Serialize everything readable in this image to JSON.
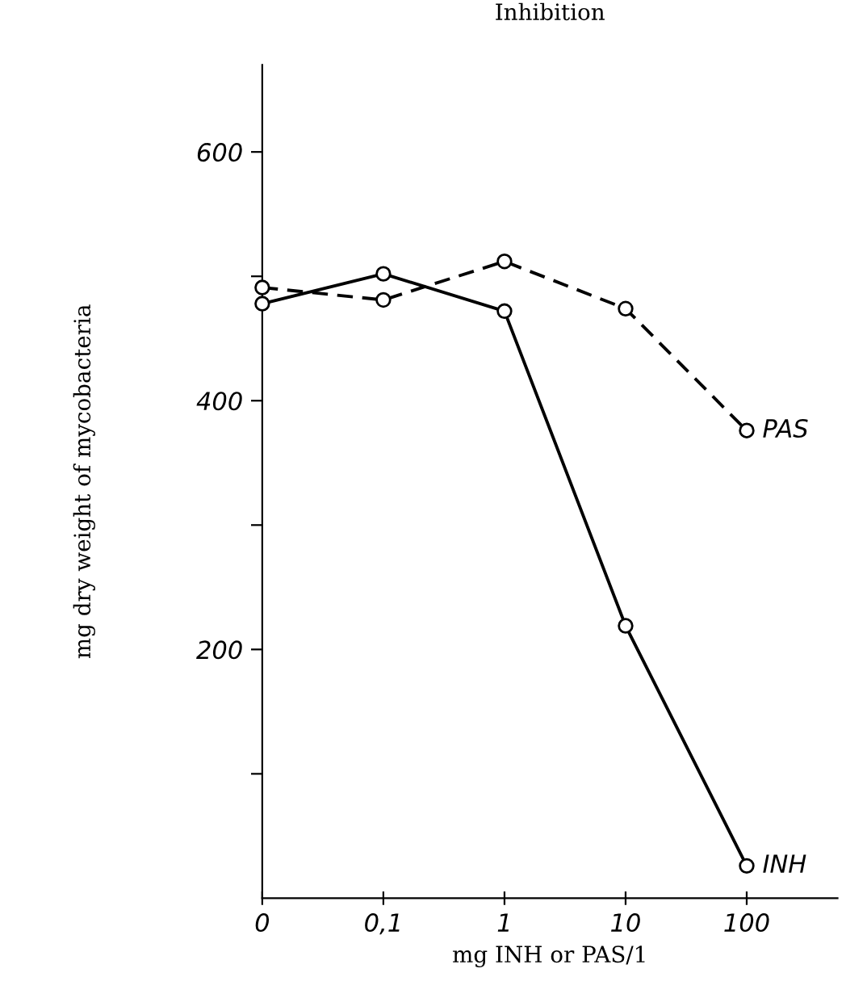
{
  "chart_data": {
    "type": "line",
    "title": "Inhibition",
    "xlabel": "mg INH or PAS/1",
    "ylabel": "mg dry weight of mycobacteria",
    "categories": [
      "0",
      "0,1",
      "1",
      "10",
      "100"
    ],
    "series": [
      {
        "name": "INH",
        "color": "#000000",
        "line_style": "solid",
        "values": [
          478,
          502,
          472,
          219,
          26
        ]
      },
      {
        "name": "PAS",
        "color": "#000000",
        "line_style": "dashed",
        "values": [
          491,
          481,
          512,
          474,
          376
        ]
      }
    ],
    "ylim": [
      0,
      670
    ],
    "yticks": [
      {
        "value": 100,
        "label": null
      },
      200,
      {
        "value": 300,
        "label": null
      },
      400,
      {
        "value": 500,
        "label": null
      },
      600
    ],
    "marker": "circle",
    "grid": false,
    "legend": false
  }
}
